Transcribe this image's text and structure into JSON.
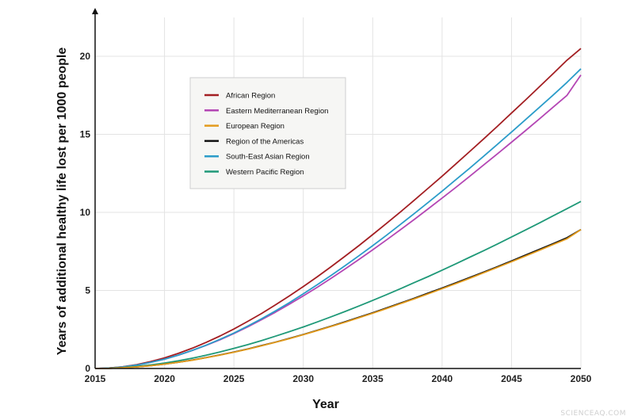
{
  "watermark": "SCIENCEAQ.COM",
  "chart_data": {
    "type": "line",
    "title": "",
    "xlabel": "Year",
    "ylabel": "Years of additional healthy life lost per 1000 people",
    "xlim": [
      2015,
      2050
    ],
    "ylim": [
      0,
      22
    ],
    "x_ticks": [
      2015,
      2020,
      2025,
      2030,
      2035,
      2040,
      2045,
      2050
    ],
    "y_ticks": [
      0,
      5,
      10,
      15,
      20
    ],
    "grid": true,
    "legend_position": "upper-left",
    "x": [
      2015,
      2016,
      2017,
      2018,
      2019,
      2020,
      2021,
      2022,
      2023,
      2024,
      2025,
      2026,
      2027,
      2028,
      2029,
      2030,
      2031,
      2032,
      2033,
      2034,
      2035,
      2036,
      2037,
      2038,
      2039,
      2040,
      2041,
      2042,
      2043,
      2044,
      2045,
      2046,
      2047,
      2048,
      2049,
      2050
    ],
    "series": [
      {
        "name": "African Region",
        "color": "#a31e22",
        "values": [
          0.0,
          0.03,
          0.11,
          0.25,
          0.44,
          0.68,
          0.97,
          1.3,
          1.67,
          2.08,
          2.53,
          3.02,
          3.53,
          4.08,
          4.65,
          5.25,
          5.87,
          6.52,
          7.19,
          7.87,
          8.58,
          9.3,
          10.03,
          10.78,
          11.55,
          12.32,
          13.11,
          13.91,
          14.71,
          15.53,
          16.36,
          17.19,
          18.04,
          18.89,
          19.75,
          20.5
        ]
      },
      {
        "name": "Eastern Mediterranean Region",
        "color": "#b446b4",
        "values": [
          0.0,
          0.03,
          0.1,
          0.22,
          0.39,
          0.6,
          0.86,
          1.15,
          1.48,
          1.84,
          2.24,
          2.67,
          3.13,
          3.61,
          4.12,
          4.65,
          5.2,
          5.77,
          6.37,
          6.98,
          7.6,
          8.24,
          8.89,
          9.55,
          10.23,
          10.92,
          11.61,
          12.32,
          13.04,
          13.76,
          14.49,
          15.23,
          15.98,
          16.74,
          17.5,
          18.8
        ]
      },
      {
        "name": "European Region",
        "color": "#e39b1c",
        "values": [
          0.0,
          0.01,
          0.05,
          0.1,
          0.18,
          0.28,
          0.4,
          0.53,
          0.69,
          0.86,
          1.04,
          1.24,
          1.45,
          1.68,
          1.91,
          2.16,
          2.42,
          2.69,
          2.96,
          3.25,
          3.54,
          3.84,
          4.15,
          4.46,
          4.78,
          5.11,
          5.44,
          5.78,
          6.13,
          6.48,
          6.84,
          7.2,
          7.57,
          7.94,
          8.31,
          8.9
        ]
      },
      {
        "name": "Region of the Americas",
        "color": "#111111",
        "values": [
          0.0,
          0.01,
          0.05,
          0.1,
          0.18,
          0.28,
          0.4,
          0.54,
          0.7,
          0.87,
          1.05,
          1.25,
          1.47,
          1.69,
          1.93,
          2.18,
          2.44,
          2.71,
          2.99,
          3.28,
          3.57,
          3.88,
          4.19,
          4.5,
          4.83,
          5.15,
          5.49,
          5.83,
          6.18,
          6.53,
          6.89,
          7.26,
          7.63,
          8.0,
          8.38,
          8.9
        ]
      },
      {
        "name": "South-East Asian Region",
        "color": "#2b9cc9",
        "values": [
          0.0,
          0.03,
          0.1,
          0.22,
          0.39,
          0.6,
          0.86,
          1.16,
          1.49,
          1.87,
          2.27,
          2.72,
          3.19,
          3.69,
          4.22,
          4.78,
          5.36,
          5.96,
          6.58,
          7.22,
          7.87,
          8.54,
          9.23,
          9.93,
          10.64,
          11.36,
          12.1,
          12.84,
          13.6,
          14.37,
          15.14,
          15.93,
          16.72,
          17.52,
          18.33,
          19.2
        ]
      },
      {
        "name": "Western Pacific Region",
        "color": "#1f9978",
        "values": [
          0.0,
          0.02,
          0.06,
          0.13,
          0.23,
          0.35,
          0.49,
          0.66,
          0.85,
          1.06,
          1.29,
          1.53,
          1.79,
          2.07,
          2.36,
          2.66,
          2.98,
          3.31,
          3.65,
          4.0,
          4.36,
          4.73,
          5.11,
          5.5,
          5.89,
          6.3,
          6.71,
          7.13,
          7.55,
          7.98,
          8.42,
          8.87,
          9.32,
          9.78,
          10.24,
          10.7
        ]
      }
    ]
  }
}
